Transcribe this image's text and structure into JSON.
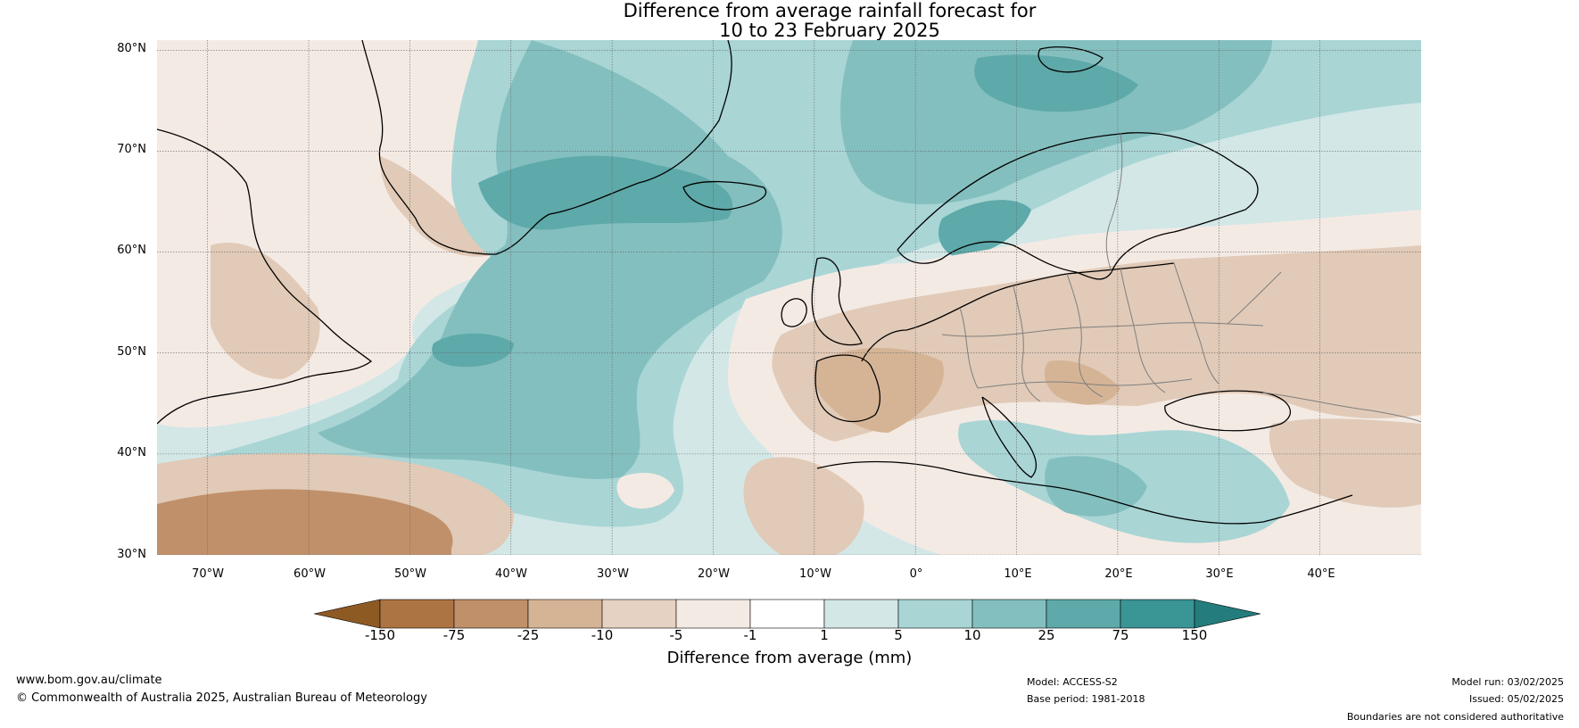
{
  "title": {
    "line1": "Difference from average rainfall forecast for",
    "line2": "10 to 23 February 2025"
  },
  "map": {
    "lat_labels": [
      "80°N",
      "70°N",
      "60°N",
      "50°N",
      "40°N",
      "30°N"
    ],
    "lon_labels": [
      "70°W",
      "60°W",
      "50°W",
      "40°W",
      "30°W",
      "20°W",
      "10°W",
      "0°",
      "10°E",
      "20°E",
      "30°E",
      "40°E"
    ],
    "lat_range": [
      30,
      81
    ],
    "lon_range": [
      -75,
      50
    ],
    "ocean_wet_color": "#84bfbf",
    "land_dry_color": "#e1cab7",
    "coastline_color": "#000000",
    "border_color": "#7f7f7f",
    "gridline_color": "#666666"
  },
  "colorbar": {
    "ticks": [
      "-150",
      "-75",
      "-25",
      "-10",
      "-5",
      "-1",
      "1",
      "5",
      "10",
      "25",
      "75",
      "150"
    ],
    "colors": [
      "#8e5a24",
      "#ac7442",
      "#c0906a",
      "#d5b496",
      "#e6d2c2",
      "#f4eae4",
      "#ffffff",
      "#d3e7e7",
      "#a9d5d5",
      "#84bfbf",
      "#5ea9a9",
      "#3a9595",
      "#247c7c"
    ],
    "label": "Difference from average (mm)"
  },
  "footer": {
    "website": "www.bom.gov.au/climate",
    "copyright": "© Commonwealth of Australia 2025, Australian Bureau of Meteorology",
    "model": "Model: ACCESS-S2",
    "base_period": "Base period: 1981-2018",
    "model_run": "Model run: 03/02/2025",
    "issued": "Issued: 05/02/2025",
    "disclaimer": "Boundaries are not considered authoritative"
  }
}
